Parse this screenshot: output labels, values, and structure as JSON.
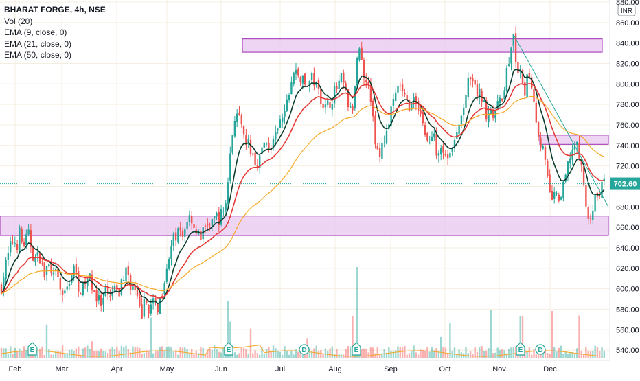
{
  "legend": {
    "symbol": "BHARAT FORGE, 4h, NSE",
    "vol": "Vol (20)",
    "ema9": "EMA (9, close, 0)",
    "ema21": "EMA (21, close, 0)",
    "ema50": "EMA (50, close, 0)"
  },
  "currency": "INR",
  "colors": {
    "up": "#26a69a",
    "down": "#ef5350",
    "ema9": "#0b3d2e",
    "ema21": "#e53935",
    "ema50": "#f5a623",
    "zone_fill": "#e9c7f0",
    "zone_stroke": "#9c27b0",
    "trendline": "#26a69a",
    "last_price_bg": "#26a69a",
    "grid": "#f5eee0"
  },
  "chart_data": {
    "type": "candlestick",
    "title": "BHARAT FORGE, 4h, NSE",
    "x_labels": [
      "Feb",
      "Mar",
      "Apr",
      "May",
      "Jun",
      "Jul",
      "Aug",
      "Sep",
      "Oct",
      "Nov",
      "Dec"
    ],
    "y_ticks": [
      540,
      560,
      580,
      600,
      620,
      640,
      660,
      680,
      700,
      720,
      740,
      760,
      780,
      800,
      820,
      840,
      860,
      880
    ],
    "y_tick_labels": [
      "540.00",
      "560.00",
      "580.00",
      "600.00",
      "620.00",
      "640.00",
      "660.00",
      "680.00",
      "700.00",
      "720.00",
      "740.00",
      "760.00",
      "780.00",
      "800.00",
      "820.00",
      "840.00",
      "860.00",
      "880.00"
    ],
    "ylim": [
      530,
      882
    ],
    "last_price": 702.6,
    "last_price_label": "702.60",
    "price_path": [
      [
        0,
        596
      ],
      [
        8,
        622
      ],
      [
        14,
        638
      ],
      [
        20,
        650
      ],
      [
        24,
        640
      ],
      [
        28,
        655
      ],
      [
        33,
        642
      ],
      [
        38,
        648
      ],
      [
        42,
        652
      ],
      [
        50,
        628
      ],
      [
        58,
        632
      ],
      [
        64,
        612
      ],
      [
        70,
        625
      ],
      [
        76,
        608
      ],
      [
        82,
        615
      ],
      [
        88,
        598
      ],
      [
        94,
        592
      ],
      [
        102,
        612
      ],
      [
        108,
        620
      ],
      [
        114,
        604
      ],
      [
        120,
        598
      ],
      [
        128,
        612
      ],
      [
        134,
        605
      ],
      [
        140,
        592
      ],
      [
        148,
        582
      ],
      [
        154,
        596
      ],
      [
        160,
        588
      ],
      [
        166,
        602
      ],
      [
        172,
        590
      ],
      [
        178,
        610
      ],
      [
        184,
        618
      ],
      [
        190,
        605
      ],
      [
        196,
        598
      ],
      [
        202,
        582
      ],
      [
        206,
        575
      ],
      [
        212,
        588
      ],
      [
        218,
        580
      ],
      [
        224,
        585
      ],
      [
        230,
        582
      ],
      [
        236,
        598
      ],
      [
        242,
        622
      ],
      [
        248,
        635
      ],
      [
        254,
        650
      ],
      [
        260,
        655
      ],
      [
        266,
        650
      ],
      [
        272,
        668
      ],
      [
        278,
        672
      ],
      [
        284,
        658
      ],
      [
        290,
        650
      ],
      [
        296,
        655
      ],
      [
        302,
        665
      ],
      [
        308,
        660
      ],
      [
        314,
        672
      ],
      [
        320,
        668
      ],
      [
        326,
        678
      ],
      [
        330,
        690
      ],
      [
        334,
        722
      ],
      [
        338,
        748
      ],
      [
        342,
        770
      ],
      [
        348,
        765
      ],
      [
        354,
        748
      ],
      [
        360,
        742
      ],
      [
        366,
        735
      ],
      [
        372,
        722
      ],
      [
        378,
        728
      ],
      [
        384,
        740
      ],
      [
        390,
        742
      ],
      [
        396,
        738
      ],
      [
        402,
        748
      ],
      [
        408,
        762
      ],
      [
        414,
        770
      ],
      [
        420,
        788
      ],
      [
        426,
        808
      ],
      [
        432,
        812
      ],
      [
        438,
        806
      ],
      [
        444,
        798
      ],
      [
        450,
        802
      ],
      [
        456,
        806
      ],
      [
        462,
        795
      ],
      [
        468,
        786
      ],
      [
        474,
        776
      ],
      [
        480,
        782
      ],
      [
        486,
        790
      ],
      [
        492,
        798
      ],
      [
        498,
        805
      ],
      [
        504,
        788
      ],
      [
        510,
        772
      ],
      [
        516,
        782
      ],
      [
        520,
        830
      ],
      [
        524,
        838
      ],
      [
        528,
        812
      ],
      [
        534,
        808
      ],
      [
        540,
        788
      ],
      [
        546,
        742
      ],
      [
        552,
        728
      ],
      [
        558,
        742
      ],
      [
        564,
        758
      ],
      [
        570,
        772
      ],
      [
        576,
        788
      ],
      [
        582,
        800
      ],
      [
        588,
        786
      ],
      [
        594,
        780
      ],
      [
        600,
        778
      ],
      [
        606,
        786
      ],
      [
        612,
        772
      ],
      [
        618,
        756
      ],
      [
        624,
        740
      ],
      [
        630,
        752
      ],
      [
        636,
        736
      ],
      [
        642,
        742
      ],
      [
        648,
        732
      ],
      [
        654,
        728
      ],
      [
        660,
        738
      ],
      [
        666,
        752
      ],
      [
        672,
        768
      ],
      [
        678,
        788
      ],
      [
        684,
        806
      ],
      [
        690,
        796
      ],
      [
        696,
        790
      ],
      [
        702,
        786
      ],
      [
        708,
        772
      ],
      [
        714,
        778
      ],
      [
        720,
        768
      ],
      [
        726,
        780
      ],
      [
        732,
        790
      ],
      [
        738,
        812
      ],
      [
        744,
        832
      ],
      [
        748,
        845
      ],
      [
        752,
        818
      ],
      [
        758,
        805
      ],
      [
        764,
        792
      ],
      [
        770,
        810
      ],
      [
        776,
        796
      ],
      [
        780,
        770
      ],
      [
        784,
        748
      ],
      [
        790,
        740
      ],
      [
        796,
        712
      ],
      [
        800,
        692
      ],
      [
        806,
        690
      ],
      [
        812,
        688
      ],
      [
        818,
        690
      ],
      [
        824,
        710
      ],
      [
        830,
        730
      ],
      [
        836,
        740
      ],
      [
        842,
        735
      ],
      [
        848,
        715
      ],
      [
        852,
        690
      ],
      [
        856,
        662
      ],
      [
        860,
        672
      ],
      [
        864,
        682
      ],
      [
        868,
        688
      ],
      [
        872,
        692
      ],
      [
        876,
        700
      ],
      [
        880,
        702.6
      ]
    ],
    "ema_series": [
      {
        "name": "EMA (9, close, 0)",
        "values": "smoothed 9"
      },
      {
        "name": "EMA (21, close, 0)",
        "values": "smoothed 21"
      },
      {
        "name": "EMA (50, close, 0)",
        "values": "smoothed 50"
      }
    ],
    "volume_spikes": [
      {
        "x_label": "Jun",
        "relative": 0.55
      },
      {
        "x_label": "Aug",
        "relative": 0.88
      },
      {
        "x_label": "Dec",
        "relative": 0.4
      }
    ],
    "zones": [
      {
        "low": 831,
        "high": 844
      },
      {
        "low": 741,
        "high": 750
      },
      {
        "low": 652,
        "high": 671
      }
    ],
    "trendline": {
      "from": [
        748,
        848
      ],
      "to": [
        886,
        680
      ]
    },
    "event_markers": [
      "E",
      "E",
      "E",
      "D",
      "E",
      "E",
      "D"
    ]
  }
}
